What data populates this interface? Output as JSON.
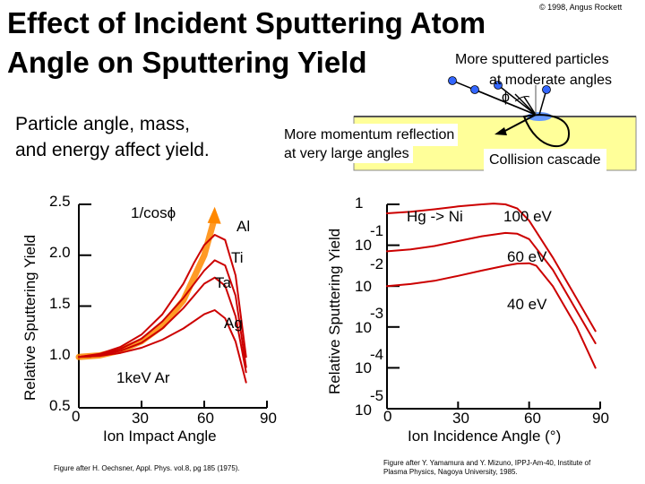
{
  "slide": {
    "title_line1": "Effect of Incident Sputtering Atom",
    "title_line2": "Angle on Sputtering Yield",
    "copyright": "© 1998, Angus Rockett",
    "subtitle_line1": "Particle angle, mass,",
    "subtitle_line2": "and energy affect yield."
  },
  "diagram": {
    "moderate_line1": "More sputtered particles",
    "moderate_line2": "at moderate angles",
    "phi_symbol": "ϕ",
    "reflection_line1": "More momentum reflection",
    "reflection_line2": "at very large angles",
    "cascade_label": "Collision cascade"
  },
  "chart_data": [
    {
      "type": "line",
      "title": "",
      "xlabel": "Ion Impact Angle",
      "ylabel": "Relative Sputtering Yield",
      "x_ticks": [
        "0",
        "30",
        "60",
        "90"
      ],
      "y_ticks": [
        "2.5",
        "2.0",
        "1.5",
        "1.0",
        "0.5"
      ],
      "xlim": [
        0,
        90
      ],
      "ylim": [
        0.5,
        2.5
      ],
      "annotation_cos": "1/cosϕ",
      "annotation_ion": "1keV Ar",
      "series": [
        {
          "name": "1/cosϕ",
          "color": "#ff8800",
          "x": [
            0,
            10,
            20,
            30,
            40,
            50,
            60,
            65
          ],
          "y": [
            1.0,
            1.015,
            1.064,
            1.155,
            1.305,
            1.556,
            2.0,
            2.37
          ]
        },
        {
          "name": "Al",
          "color": "#cc0000",
          "x": [
            0,
            10,
            20,
            30,
            40,
            50,
            55,
            60,
            65,
            70,
            75,
            80
          ],
          "y": [
            1.0,
            1.03,
            1.1,
            1.22,
            1.42,
            1.72,
            1.92,
            2.1,
            2.2,
            2.15,
            1.8,
            1.0
          ]
        },
        {
          "name": "Ti",
          "color": "#cc0000",
          "x": [
            0,
            10,
            20,
            30,
            40,
            50,
            60,
            65,
            70,
            75,
            80
          ],
          "y": [
            1.0,
            1.025,
            1.08,
            1.18,
            1.35,
            1.58,
            1.85,
            1.95,
            1.9,
            1.6,
            0.9
          ]
        },
        {
          "name": "Ta",
          "color": "#cc0000",
          "x": [
            0,
            10,
            20,
            30,
            40,
            50,
            60,
            65,
            70,
            75,
            80
          ],
          "y": [
            1.0,
            1.02,
            1.06,
            1.14,
            1.28,
            1.48,
            1.72,
            1.78,
            1.7,
            1.4,
            0.85
          ]
        },
        {
          "name": "Ag",
          "color": "#cc0000",
          "x": [
            0,
            10,
            20,
            30,
            40,
            50,
            60,
            65,
            70,
            75,
            80
          ],
          "y": [
            1.0,
            1.01,
            1.04,
            1.09,
            1.17,
            1.28,
            1.42,
            1.46,
            1.38,
            1.15,
            0.75
          ]
        }
      ],
      "series_labels": [
        "Al",
        "Ti",
        "Ta",
        "Ag"
      ],
      "source": "Figure after H. Oechsner, Appl. Phys. vol.8, pg 185 (1975)."
    },
    {
      "type": "line",
      "title": "",
      "xlabel": "Ion Incidence Angle (°)",
      "ylabel": "Relative Sputtering Yield",
      "x_ticks": [
        "0",
        "30",
        "60",
        "90"
      ],
      "y_ticks": [
        {
          "base": "1",
          "exp": ""
        },
        {
          "base": "10",
          "exp": "-1"
        },
        {
          "base": "10",
          "exp": "-2"
        },
        {
          "base": "10",
          "exp": "-3"
        },
        {
          "base": "10",
          "exp": "-4"
        },
        {
          "base": "10",
          "exp": "-5"
        }
      ],
      "xlim": [
        0,
        90
      ],
      "ylim_log10": [
        -5,
        0
      ],
      "annotation": "Hg -> Ni",
      "series": [
        {
          "name": "100 eV",
          "color": "#cc0000",
          "x": [
            0,
            10,
            20,
            30,
            40,
            45,
            50,
            55,
            60,
            70,
            80,
            88
          ],
          "y_log10": [
            -0.22,
            -0.18,
            -0.12,
            -0.05,
            0.0,
            0.02,
            0.0,
            -0.1,
            -0.4,
            -1.3,
            -2.3,
            -3.1
          ]
        },
        {
          "name": "60 eV",
          "color": "#cc0000",
          "x": [
            0,
            10,
            20,
            30,
            40,
            50,
            55,
            60,
            70,
            80,
            88
          ],
          "y_log10": [
            -1.15,
            -1.1,
            -1.02,
            -0.9,
            -0.78,
            -0.7,
            -0.72,
            -0.85,
            -1.6,
            -2.6,
            -3.4
          ]
        },
        {
          "name": "40 eV",
          "color": "#cc0000",
          "x": [
            0,
            10,
            20,
            30,
            40,
            50,
            55,
            60,
            63,
            70,
            80,
            88
          ],
          "y_log10": [
            -2.0,
            -1.95,
            -1.87,
            -1.75,
            -1.62,
            -1.5,
            -1.45,
            -1.44,
            -1.5,
            -2.0,
            -3.0,
            -4.0
          ]
        }
      ],
      "series_labels": [
        "100 eV",
        "60 eV",
        "40 eV"
      ],
      "source_line1": "Figure after Y. Yamamura and Y. Mizuno, IPPJ-Am-40, Institute of",
      "source_line2": "Plasma Physics, Nagoya University, 1985."
    }
  ]
}
